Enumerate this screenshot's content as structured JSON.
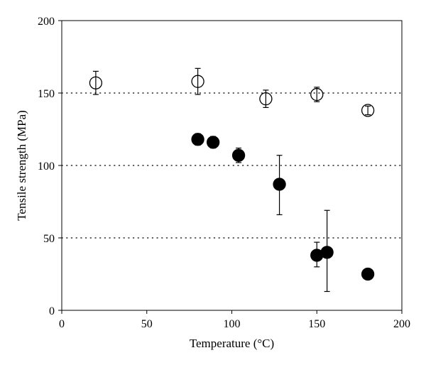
{
  "chart_data": {
    "type": "scatter",
    "title": "",
    "xlabel": "Temperature (°C)",
    "ylabel": "Tensile strength (MPa)",
    "xlim": [
      0,
      200
    ],
    "ylim": [
      0,
      200
    ],
    "x_ticks": [
      0,
      50,
      100,
      150,
      200
    ],
    "y_ticks": [
      0,
      50,
      100,
      150,
      200
    ],
    "y_gridlines": [
      50,
      100,
      150
    ],
    "grid_style": "dotted-horizontal",
    "legend": "none",
    "colors": {
      "axis": "#000000",
      "filled_marker": "#000000",
      "open_marker_fill": "#ffffff"
    },
    "series": [
      {
        "marker": "open-circle",
        "points": [
          {
            "x": 20,
            "y": 157,
            "err_low": 149,
            "err_high": 165
          },
          {
            "x": 80,
            "y": 158,
            "err_low": 149,
            "err_high": 167
          },
          {
            "x": 120,
            "y": 146,
            "err_low": 140,
            "err_high": 152
          },
          {
            "x": 150,
            "y": 149,
            "err_low": 144,
            "err_high": 154
          },
          {
            "x": 180,
            "y": 138,
            "err_low": 135,
            "err_high": 141
          }
        ]
      },
      {
        "marker": "filled-circle",
        "points": [
          {
            "x": 80,
            "y": 118,
            "err_low": 114,
            "err_high": 122
          },
          {
            "x": 89,
            "y": 116,
            "err_low": 112,
            "err_high": 120
          },
          {
            "x": 104,
            "y": 107,
            "err_low": 102,
            "err_high": 112
          },
          {
            "x": 128,
            "y": 87,
            "err_low": 66,
            "err_high": 107
          },
          {
            "x": 150,
            "y": 38,
            "err_low": 30,
            "err_high": 47
          },
          {
            "x": 156,
            "y": 40,
            "err_low": 13,
            "err_high": 69
          },
          {
            "x": 180,
            "y": 25,
            "err_low": 25,
            "err_high": 25
          }
        ]
      }
    ]
  }
}
